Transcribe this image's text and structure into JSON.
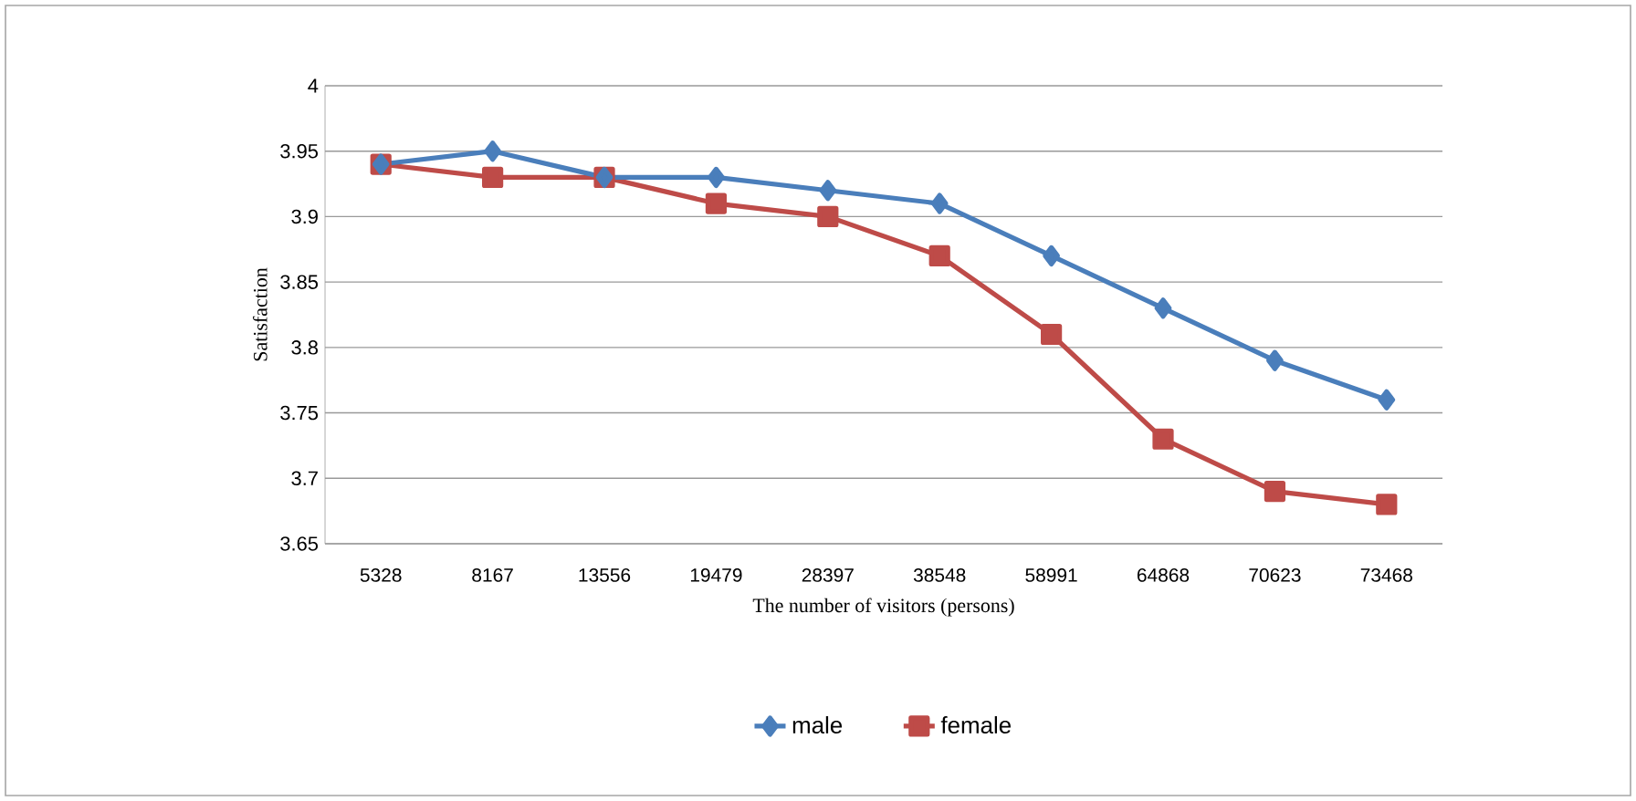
{
  "chart_data": {
    "type": "line",
    "xlabel": "The number of visitors (persons)",
    "ylabel": "Satisfaction",
    "categories": [
      "5328",
      "8167",
      "13556",
      "19479",
      "28397",
      "38548",
      "58991",
      "64868",
      "70623",
      "73468"
    ],
    "series": [
      {
        "name": "male",
        "color": "#4a7ebb",
        "marker": "diamond",
        "values": [
          3.94,
          3.95,
          3.93,
          3.93,
          3.92,
          3.91,
          3.87,
          3.83,
          3.79,
          3.76
        ]
      },
      {
        "name": "female",
        "color": "#be4b48",
        "marker": "square",
        "values": [
          3.94,
          3.93,
          3.93,
          3.91,
          3.9,
          3.87,
          3.81,
          3.73,
          3.69,
          3.68
        ]
      }
    ],
    "ylim": [
      3.65,
      4
    ],
    "yticks": [
      3.65,
      3.7,
      3.75,
      3.8,
      3.85,
      3.9,
      3.95,
      4
    ],
    "grid": "y",
    "legend": "bottom",
    "line_style": "solid"
  }
}
